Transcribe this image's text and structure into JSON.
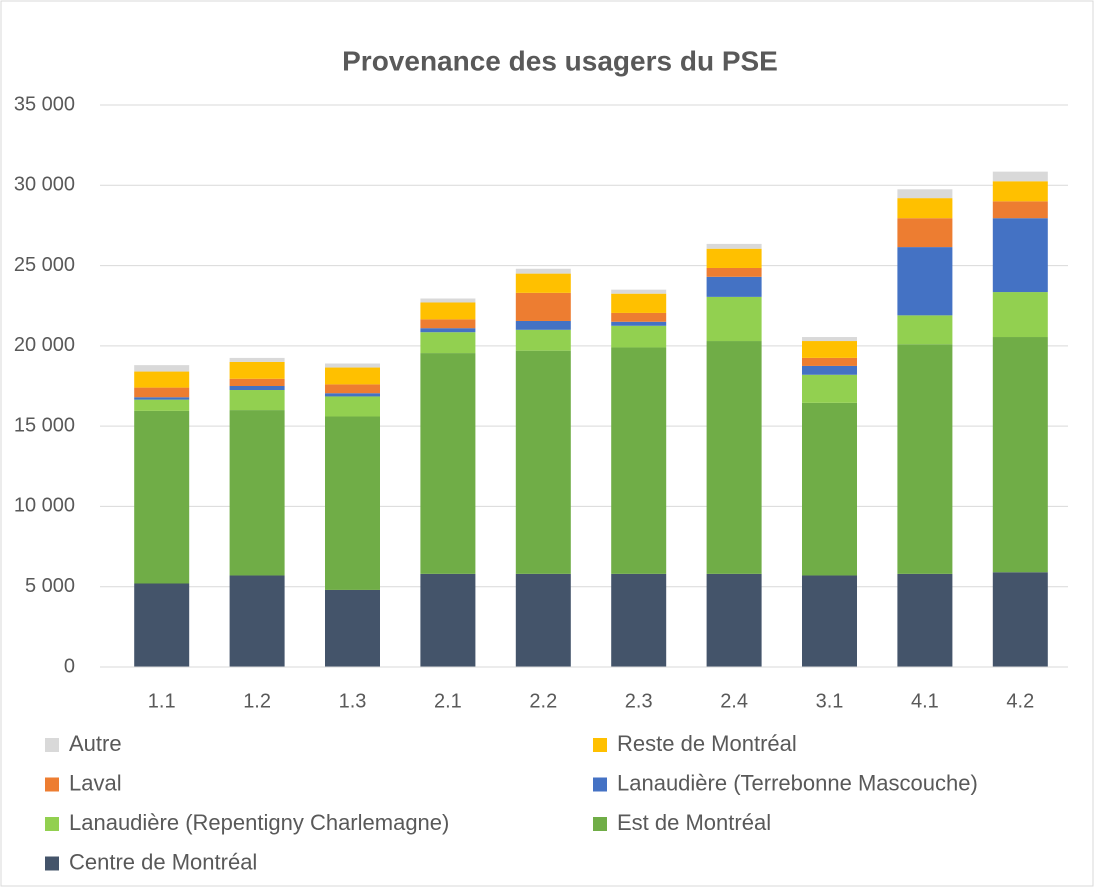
{
  "chart_data": {
    "type": "stacked_bar",
    "title": "Provenance des usagers du PSE",
    "categories": [
      "1.1",
      "1.2",
      "1.3",
      "2.1",
      "2.2",
      "2.3",
      "2.4",
      "3.1",
      "4.1",
      "4.2"
    ],
    "series": [
      {
        "name": "Centre de Montréal",
        "color": "#44546a",
        "values": [
          5200,
          5700,
          4800,
          5800,
          5800,
          5800,
          5800,
          5700,
          5800,
          5900
        ]
      },
      {
        "name": "Est de Montréal",
        "color": "#70ad47",
        "values": [
          10750,
          10300,
          10800,
          13750,
          13900,
          14100,
          14500,
          10750,
          14300,
          14650
        ]
      },
      {
        "name": "Lanaudière (Repentigny Charlemagne)",
        "color": "#92d050",
        "values": [
          700,
          1250,
          1250,
          1300,
          1300,
          1350,
          2750,
          1750,
          1800,
          2800
        ]
      },
      {
        "name": "Lanaudière (Terrebonne Mascouche)",
        "color": "#4472c4",
        "values": [
          150,
          250,
          200,
          250,
          550,
          250,
          1250,
          550,
          4250,
          4600
        ]
      },
      {
        "name": "Laval",
        "color": "#ed7d31",
        "values": [
          600,
          450,
          550,
          550,
          1750,
          550,
          550,
          500,
          1800,
          1050
        ]
      },
      {
        "name": "Reste de Montréal",
        "color": "#ffc000",
        "values": [
          1000,
          1050,
          1050,
          1050,
          1200,
          1200,
          1200,
          1050,
          1250,
          1250
        ]
      },
      {
        "name": "Autre",
        "color": "#d9d9d9",
        "values": [
          400,
          250,
          250,
          250,
          300,
          250,
          300,
          250,
          550,
          600
        ]
      }
    ],
    "ylim": [
      0,
      35000
    ],
    "yticks": [
      0,
      {
        "value": 5000,
        "label": "5 000"
      },
      {
        "value": 10000,
        "label": "10 000"
      },
      {
        "value": 15000,
        "label": "15 000"
      },
      {
        "value": 20000,
        "label": "20 000"
      },
      {
        "value": 25000,
        "label": "25 000"
      },
      {
        "value": 30000,
        "label": "30 000"
      },
      {
        "value": 35000,
        "label": "35 000"
      }
    ],
    "grid": true,
    "legend": "bottom"
  }
}
